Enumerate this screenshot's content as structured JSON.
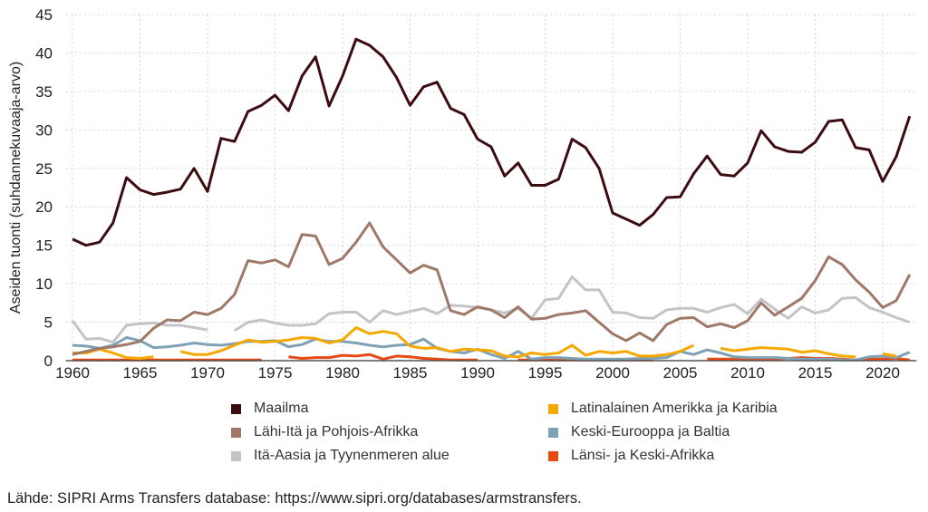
{
  "chart_data": {
    "type": "line",
    "title": "",
    "xlabel": "",
    "ylabel": "Aseiden tuonti (suhdannekuvaaja-arvo)",
    "xlim": [
      1959.5,
      2022.5
    ],
    "ylim": [
      0,
      45
    ],
    "x_ticks": [
      1960,
      1965,
      1970,
      1975,
      1980,
      1985,
      1990,
      1995,
      2000,
      2005,
      2010,
      2015,
      2020
    ],
    "y_ticks": [
      0,
      5,
      10,
      15,
      20,
      25,
      30,
      35,
      40,
      45
    ],
    "grid": true,
    "legend_placement": "bottom",
    "x_start": 1960,
    "series": [
      {
        "name": "Maailma",
        "color": "#3d0c11",
        "values": [
          15.8,
          15.0,
          15.4,
          17.9,
          23.8,
          22.2,
          21.6,
          21.9,
          22.3,
          25.0,
          22.0,
          28.9,
          28.5,
          32.4,
          33.2,
          34.5,
          32.5,
          37.0,
          39.5,
          33.1,
          37.0,
          41.8,
          41.0,
          39.5,
          36.8,
          33.2,
          35.6,
          36.2,
          32.8,
          32.0,
          28.8,
          27.8,
          24.0,
          25.7,
          22.8,
          22.8,
          23.6,
          28.8,
          27.7,
          25.0,
          19.2,
          18.4,
          17.6,
          19.0,
          21.2,
          21.3,
          24.3,
          26.6,
          24.2,
          24.0,
          25.7,
          29.9,
          27.8,
          27.2,
          27.1,
          28.4,
          31.1,
          31.3,
          27.7,
          27.4,
          23.3,
          26.5,
          31.8
        ]
      },
      {
        "name": "Lähi-Itä ja Pohjois-Afrikka",
        "color": "#a07868",
        "values": [
          0.8,
          1.2,
          1.6,
          1.8,
          2.1,
          2.5,
          4.2,
          5.3,
          5.2,
          6.3,
          6.0,
          6.8,
          8.6,
          13.0,
          12.7,
          13.1,
          12.2,
          16.4,
          16.2,
          12.5,
          13.3,
          15.4,
          17.9,
          14.8,
          13.1,
          11.4,
          12.4,
          11.8,
          6.5,
          6.0,
          7.0,
          6.6,
          5.6,
          7.0,
          5.4,
          5.5,
          6.0,
          6.2,
          6.5,
          5.0,
          3.5,
          2.6,
          3.6,
          2.6,
          4.7,
          5.5,
          5.6,
          4.4,
          4.8,
          4.3,
          5.2,
          7.5,
          5.9,
          7.0,
          8.1,
          10.4,
          13.5,
          12.5,
          10.5,
          8.9,
          6.9,
          7.8,
          11.2
        ]
      },
      {
        "name": "Itä-Aasia ja Tyynenmeren alue",
        "color": "#c4c4c8",
        "values": [
          5.2,
          2.8,
          2.9,
          2.4,
          4.6,
          4.8,
          4.9,
          4.6,
          4.6,
          4.3,
          4.0,
          null,
          3.9,
          5.0,
          5.3,
          4.9,
          4.6,
          4.6,
          4.8,
          6.1,
          6.3,
          6.3,
          5.0,
          6.5,
          6.0,
          6.4,
          6.8,
          6.1,
          7.2,
          7.1,
          6.9,
          6.6,
          6.2,
          6.8,
          5.5,
          7.9,
          8.1,
          10.9,
          9.2,
          9.2,
          6.3,
          6.2,
          5.6,
          5.5,
          6.6,
          6.8,
          6.8,
          6.3,
          6.9,
          7.3,
          6.1,
          8.0,
          6.7,
          5.5,
          7.0,
          6.2,
          6.6,
          8.1,
          8.2,
          6.9,
          6.3,
          5.6,
          5.0
        ]
      },
      {
        "name": "Latinalainen Amerikka ja Karibia",
        "color": "#f5a800",
        "values": [
          1.0,
          1.0,
          1.5,
          1.0,
          0.4,
          0.3,
          0.5,
          null,
          1.2,
          0.8,
          0.8,
          1.3,
          2.0,
          2.7,
          2.4,
          2.5,
          2.7,
          3.0,
          2.9,
          2.3,
          2.7,
          4.3,
          3.5,
          3.8,
          3.5,
          1.9,
          1.6,
          1.7,
          1.2,
          1.5,
          1.4,
          1.3,
          0.6,
          0.5,
          1.0,
          0.8,
          1.0,
          2.0,
          0.7,
          1.2,
          1.0,
          1.2,
          0.6,
          0.6,
          0.8,
          1.2,
          2.0,
          null,
          1.6,
          1.3,
          1.5,
          1.7,
          1.6,
          1.5,
          1.1,
          1.3,
          0.9,
          0.6,
          0.5,
          null,
          0.9,
          0.6,
          null
        ]
      },
      {
        "name": "Keski-Eurooppa ja Baltia",
        "color": "#7fa1b5",
        "values": [
          2.0,
          1.9,
          1.6,
          2.0,
          3.0,
          2.6,
          1.7,
          1.8,
          2.0,
          2.3,
          2.1,
          2.0,
          2.2,
          2.5,
          2.5,
          2.6,
          1.8,
          2.1,
          2.8,
          2.5,
          2.5,
          2.3,
          2.0,
          1.8,
          2.0,
          2.1,
          2.8,
          1.6,
          1.2,
          1.0,
          1.5,
          0.8,
          0.3,
          1.2,
          0.2,
          0.4,
          0.4,
          0.3,
          0.2,
          0.2,
          0.2,
          0.2,
          0.3,
          0.3,
          0.4,
          1.2,
          0.8,
          1.4,
          1.0,
          0.5,
          0.4,
          0.4,
          0.4,
          0.3,
          0.2,
          0.2,
          0.2,
          0.1,
          0.1,
          0.5,
          0.6,
          0.4,
          1.1
        ]
      },
      {
        "name": "Länsi- ja Keski-Afrikka",
        "color": "#e84a14",
        "values": [
          0.1,
          0.1,
          0.1,
          0.1,
          0.1,
          0.1,
          0.1,
          0.1,
          0.1,
          0.1,
          0.1,
          0.1,
          0.1,
          0.1,
          0.1,
          null,
          0.5,
          0.3,
          0.4,
          0.4,
          0.7,
          0.6,
          0.8,
          0.2,
          0.6,
          0.5,
          0.3,
          0.2,
          0.1,
          0.1,
          0.1,
          null,
          null,
          0.1,
          0.1,
          0.1,
          0.1,
          0.1,
          0.1,
          0.1,
          0.1,
          0.1,
          0.1,
          0.1,
          null,
          null,
          null,
          0.2,
          0.2,
          0.2,
          0.2,
          0.2,
          0.2,
          0.3,
          0.4,
          0.3,
          0.3,
          0.2,
          0.1,
          0.2,
          0.2,
          0.3,
          0.1
        ]
      }
    ]
  },
  "legend_order": [
    0,
    3,
    1,
    4,
    2,
    5
  ],
  "source": "Lähde: SIPRI Arms Transfers database: https://www.sipri.org/databases/armstransfers."
}
